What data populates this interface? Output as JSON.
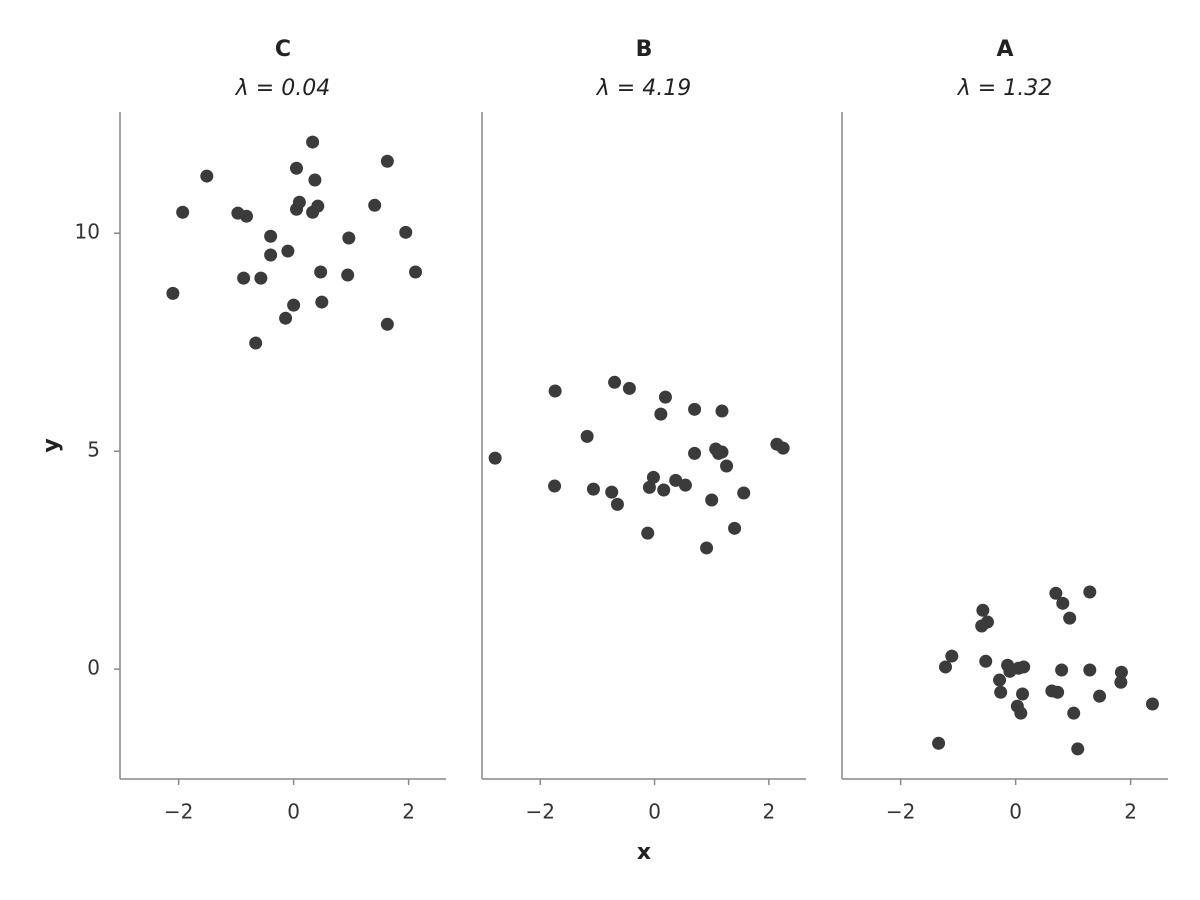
{
  "chart_data": [
    {
      "type": "scatter",
      "title": "C",
      "subtitle": "λ = 0.04",
      "color": "#3b3b3b",
      "y_label": "y",
      "xlim": [
        -3.02,
        2.65
      ],
      "ylim": [
        -2.52,
        12.78
      ],
      "xticks": [
        {
          "value": -2,
          "label": "−2"
        },
        0,
        2
      ],
      "yticks": [
        0,
        5,
        10
      ],
      "x": [
        0.33,
        1.63,
        -1.51,
        0.05,
        0.37,
        -1.93,
        -0.97,
        -0.82,
        0.1,
        0.05,
        0.33,
        0.42,
        1.41,
        1.95,
        0.96,
        -0.4,
        -0.1,
        -0.4,
        0.47,
        0.94,
        2.12,
        -0.87,
        -0.57,
        -2.1,
        0.0,
        0.49,
        -0.14,
        1.63,
        -0.66
      ],
      "values": [
        12.09,
        11.65,
        11.31,
        11.49,
        11.22,
        10.48,
        10.46,
        10.39,
        10.71,
        10.55,
        10.48,
        10.62,
        10.64,
        10.02,
        9.89,
        9.93,
        9.59,
        9.5,
        9.11,
        9.04,
        9.11,
        8.97,
        8.97,
        8.62,
        8.35,
        8.42,
        8.05,
        7.91,
        7.48
      ]
    },
    {
      "type": "scatter",
      "title": "B",
      "subtitle": "λ = 4.19",
      "color": "#3b3b3b",
      "x_label": "x",
      "xlim": [
        -3.02,
        2.65
      ],
      "ylim": [
        -2.52,
        12.78
      ],
      "xticks": [
        {
          "value": -2,
          "label": "−2"
        },
        0,
        2
      ],
      "x": [
        -0.7,
        -1.74,
        -0.44,
        0.19,
        0.7,
        1.18,
        0.11,
        -1.18,
        1.07,
        2.14,
        2.25,
        1.18,
        0.7,
        1.12,
        -2.79,
        1.26,
        -0.02,
        0.37,
        0.54,
        -1.75,
        -1.07,
        -0.09,
        0.16,
        -0.75,
        1.56,
        1.0,
        -0.65,
        1.4,
        -0.12,
        0.91
      ],
      "values": [
        6.58,
        6.38,
        6.44,
        6.24,
        5.96,
        5.92,
        5.85,
        5.34,
        5.05,
        5.16,
        5.07,
        4.98,
        4.95,
        4.95,
        4.84,
        4.66,
        4.4,
        4.33,
        4.22,
        4.2,
        4.13,
        4.17,
        4.11,
        4.06,
        4.04,
        3.88,
        3.78,
        3.23,
        3.12,
        2.78
      ]
    },
    {
      "type": "scatter",
      "title": "A",
      "subtitle": "λ = 1.32",
      "color": "#3b3b3b",
      "xlim": [
        -3.02,
        2.65
      ],
      "ylim": [
        -2.52,
        12.78
      ],
      "xticks": [
        {
          "value": -2,
          "label": "−2"
        },
        0,
        2
      ],
      "x": [
        0.7,
        1.29,
        0.82,
        -0.57,
        0.94,
        -0.49,
        -0.59,
        -1.11,
        -0.52,
        -1.22,
        -0.14,
        0.14,
        0.05,
        -0.1,
        0.8,
        1.29,
        1.84,
        -0.28,
        1.83,
        -0.26,
        0.12,
        0.63,
        0.73,
        1.46,
        2.38,
        0.03,
        0.09,
        1.01,
        -1.34,
        1.08
      ],
      "values": [
        1.74,
        1.77,
        1.51,
        1.35,
        1.17,
        1.08,
        0.99,
        0.3,
        0.18,
        0.05,
        0.09,
        0.05,
        0.02,
        -0.05,
        -0.02,
        -0.02,
        -0.07,
        -0.25,
        -0.3,
        -0.53,
        -0.57,
        -0.5,
        -0.53,
        -0.62,
        -0.8,
        -0.85,
        -1.01,
        -1.01,
        -1.7,
        -1.83
      ]
    }
  ]
}
